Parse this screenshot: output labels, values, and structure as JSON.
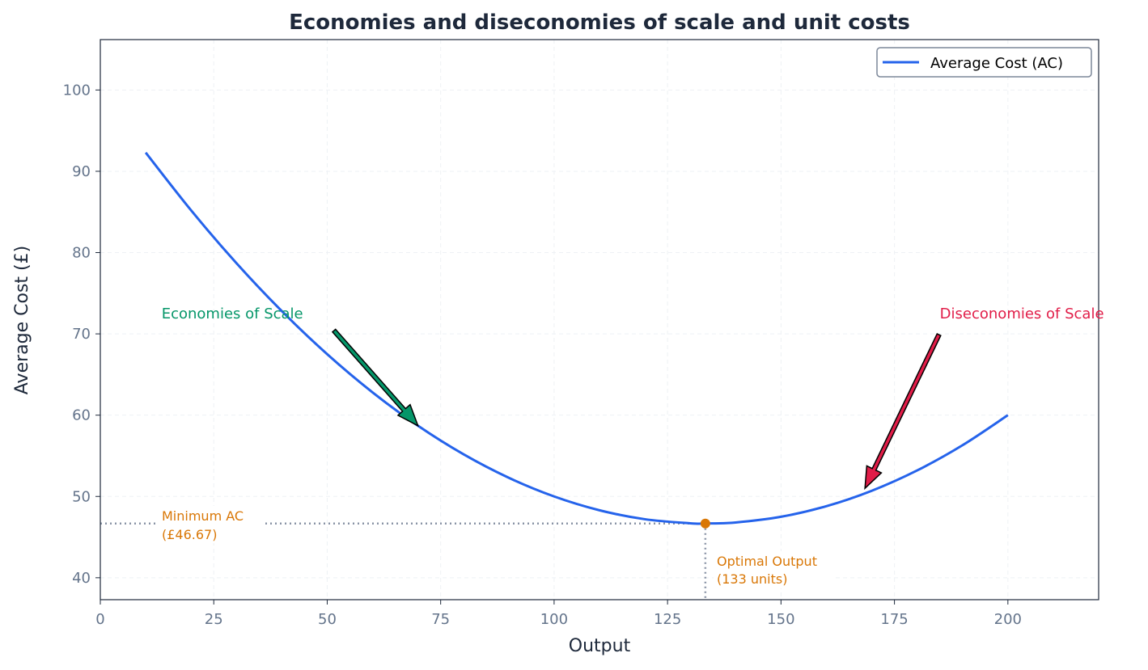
{
  "chart_data": {
    "type": "line",
    "title": "Economies and diseconomies of scale and unit costs",
    "xlabel": "Output",
    "ylabel": "Average Cost (£)",
    "xlim": [
      0,
      220
    ],
    "ylim": [
      37.3,
      106.2
    ],
    "xticks": [
      0,
      25,
      50,
      75,
      100,
      125,
      150,
      175,
      200
    ],
    "yticks": [
      40,
      50,
      60,
      70,
      80,
      90,
      100
    ],
    "grid": true,
    "legend": {
      "placement": "top-right",
      "entries": [
        "Average Cost (AC)"
      ]
    },
    "series": [
      {
        "name": "Average Cost (AC)",
        "color": "#2563eb",
        "x": [
          10,
          20,
          30,
          40,
          50,
          60,
          70,
          80,
          90,
          100,
          110,
          120,
          130,
          133.33,
          140,
          150,
          160,
          170,
          180,
          190,
          200
        ],
        "y": [
          92.3,
          85.2,
          78.7,
          72.8,
          67.5,
          62.8,
          58.7,
          55.2,
          52.3,
          50.0,
          48.3,
          47.2,
          46.7,
          46.67,
          46.8,
          47.5,
          48.8,
          50.7,
          53.2,
          56.3,
          60.0
        ]
      }
    ],
    "minimum_point": {
      "x": 133.33,
      "y": 46.67,
      "color": "#d97706"
    },
    "annotations": {
      "economies": {
        "text": "Economies of Scale",
        "text_x": 13.5,
        "text_y": 72.5,
        "arrow_from": [
          51.5,
          70.4
        ],
        "arrow_to": [
          70,
          58.7
        ],
        "color": "#059669"
      },
      "diseconomies": {
        "text": "Diseconomies of Scale",
        "text_x": 185,
        "text_y": 72.5,
        "arrow_from": [
          184.8,
          69.9
        ],
        "arrow_to": [
          168.5,
          51
        ],
        "color": "#e11d48"
      },
      "minimum_ac": {
        "line1": "Minimum AC",
        "line2": "(£46.67)",
        "color": "#d97706"
      },
      "optimal_output": {
        "line1": "Optimal Output",
        "line2": "(133 units)",
        "color": "#d97706"
      }
    }
  }
}
